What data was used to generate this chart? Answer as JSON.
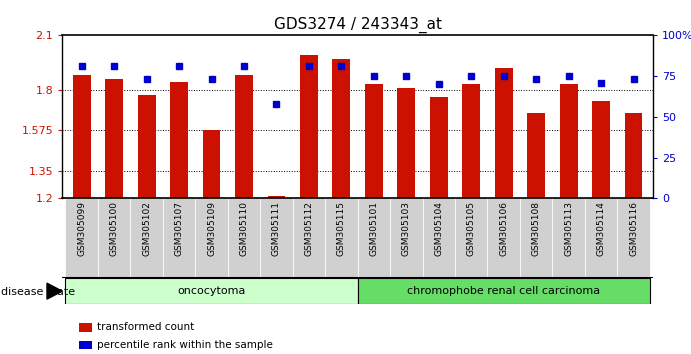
{
  "title": "GDS3274 / 243343_at",
  "samples": [
    "GSM305099",
    "GSM305100",
    "GSM305102",
    "GSM305107",
    "GSM305109",
    "GSM305110",
    "GSM305111",
    "GSM305112",
    "GSM305115",
    "GSM305101",
    "GSM305103",
    "GSM305104",
    "GSM305105",
    "GSM305106",
    "GSM305108",
    "GSM305113",
    "GSM305114",
    "GSM305116"
  ],
  "bar_values": [
    1.88,
    1.86,
    1.77,
    1.84,
    1.575,
    1.88,
    1.21,
    1.99,
    1.97,
    1.83,
    1.81,
    1.76,
    1.83,
    1.92,
    1.67,
    1.83,
    1.74,
    1.67
  ],
  "percentile_values": [
    81,
    81,
    73,
    81,
    73,
    81,
    58,
    81,
    81,
    75,
    75,
    70,
    75,
    75,
    73,
    75,
    71,
    73
  ],
  "group1_label": "oncocytoma",
  "group2_label": "chromophobe renal cell carcinoma",
  "group1_count": 9,
  "group2_count": 9,
  "bar_color": "#cc1100",
  "percentile_color": "#0000cc",
  "group1_bg": "#ccffcc",
  "group2_bg": "#66dd66",
  "xlabel_bg": "#d0d0d0",
  "ylim_left": [
    1.2,
    2.1
  ],
  "ylim_right": [
    0,
    100
  ],
  "yticks_left": [
    1.2,
    1.35,
    1.575,
    1.8,
    2.1
  ],
  "ytick_labels_left": [
    "1.2",
    "1.35",
    "1.575",
    "1.8",
    "2.1"
  ],
  "yticks_right": [
    0,
    25,
    50,
    75,
    100
  ],
  "ytick_labels_right": [
    "0",
    "25",
    "50",
    "75",
    "100%"
  ],
  "grid_lines": [
    1.35,
    1.575,
    1.8
  ],
  "legend_items": [
    "transformed count",
    "percentile rank within the sample"
  ],
  "disease_state_label": "disease state",
  "left_color": "#cc1100",
  "right_color": "#0000cc"
}
